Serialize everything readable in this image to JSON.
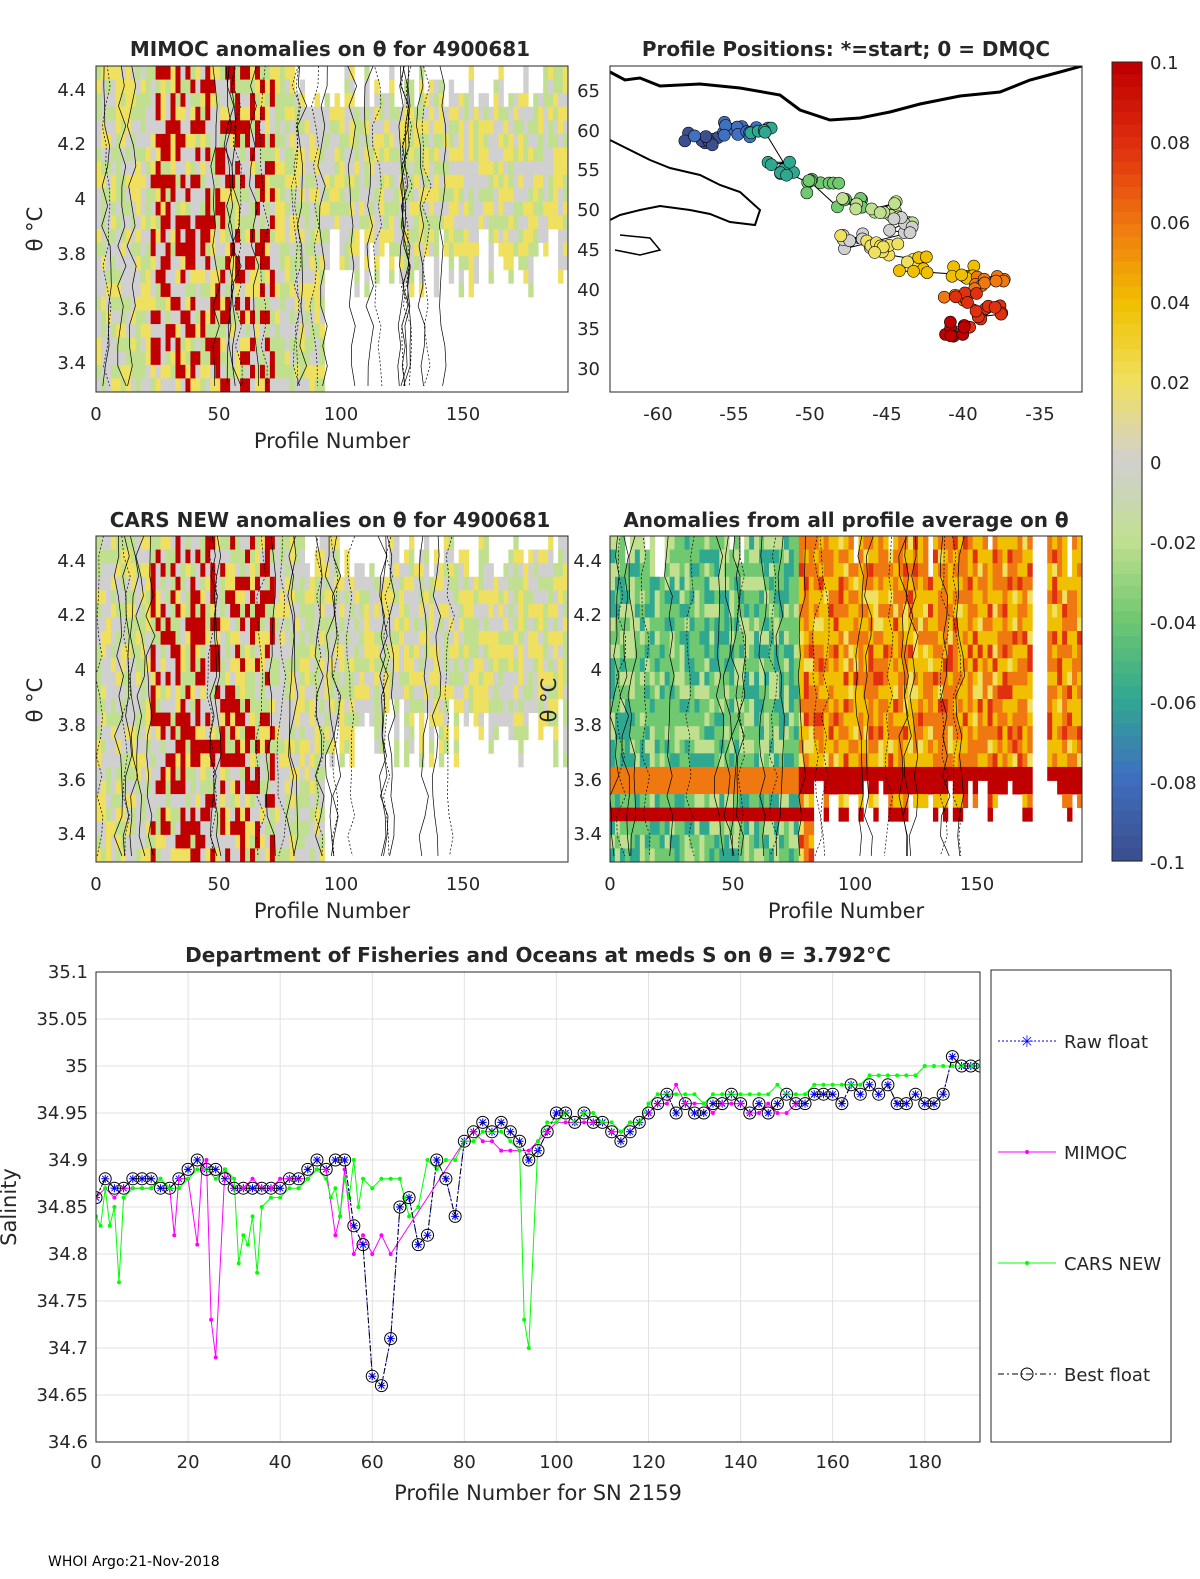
{
  "panels": {
    "mimoc": {
      "title": "MIMOC anomalies on θ  for 4900681",
      "ylabel": "θ °C",
      "xlabel": "Profile Number",
      "xticks": [
        "0",
        "50",
        "100",
        "150"
      ],
      "yticks": [
        "3.4",
        "3.6",
        "3.8",
        "4",
        "4.2",
        "4.4"
      ]
    },
    "positions": {
      "title": "Profile Positions: *=start; 0 = DMQC",
      "xticks": [
        "-60",
        "-55",
        "-50",
        "-45",
        "-40",
        "-35"
      ],
      "yticks": [
        "30",
        "35",
        "40",
        "45",
        "50",
        "55",
        "60",
        "65"
      ]
    },
    "cars": {
      "title": "CARS NEW anomalies on θ for 4900681",
      "ylabel": "θ °C",
      "xlabel": "Profile Number",
      "xticks": [
        "0",
        "50",
        "100",
        "150"
      ],
      "yticks": [
        "3.4",
        "3.6",
        "3.8",
        "4",
        "4.2",
        "4.4"
      ]
    },
    "average": {
      "title": "Anomalies from all profile average on θ",
      "ylabel": "θ °C",
      "xlabel": "Profile Number",
      "xticks": [
        "0",
        "50",
        "100",
        "150"
      ],
      "yticks": [
        "3.4",
        "3.6",
        "3.8",
        "4",
        "4.2",
        "4.4"
      ]
    },
    "colorbar": {
      "ticks": [
        "0.1",
        "0.08",
        "0.06",
        "0.04",
        "0.02",
        "0",
        "-0.02",
        "-0.04",
        "-0.06",
        "-0.08",
        "-0.1"
      ],
      "colors": [
        "#c00000",
        "#e03010",
        "#f07810",
        "#f0c000",
        "#f0e060",
        "#d0d0d0",
        "#c0e090",
        "#70c870",
        "#30a890",
        "#4070c0",
        "#3c4f90"
      ]
    }
  },
  "chart_data": {
    "type": "line",
    "title": "Department of Fisheries and Oceans at meds S on θ = 3.792°C",
    "xlabel": "Profile Number for SN 2159",
    "ylabel": "Salinity",
    "xlim": [
      0,
      192
    ],
    "ylim": [
      34.6,
      35.1
    ],
    "xticks": [
      "0",
      "20",
      "40",
      "60",
      "80",
      "100",
      "120",
      "140",
      "160",
      "180"
    ],
    "yticks": [
      "34.6",
      "34.65",
      "34.7",
      "34.75",
      "34.8",
      "34.85",
      "34.9",
      "34.95",
      "35",
      "35.05",
      "35.1"
    ],
    "series": [
      {
        "name": "Raw float",
        "color": "#0000ff",
        "x": [
          0,
          2,
          4,
          6,
          8,
          10,
          12,
          14,
          16,
          18,
          20,
          22,
          24,
          26,
          28,
          30,
          32,
          34,
          36,
          38,
          40,
          42,
          44,
          46,
          48,
          50,
          52,
          54,
          56,
          58,
          60,
          62,
          64,
          66,
          68,
          70,
          72,
          74,
          76,
          78,
          80,
          82,
          84,
          86,
          88,
          90,
          92,
          94,
          96,
          98,
          100,
          102,
          104,
          106,
          108,
          110,
          112,
          114,
          116,
          118,
          120,
          122,
          124,
          126,
          128,
          130,
          132,
          134,
          136,
          138,
          140,
          142,
          144,
          146,
          148,
          150,
          152,
          154,
          156,
          158,
          160,
          162,
          164,
          166,
          168,
          170,
          172,
          174,
          176,
          178,
          180,
          182,
          184,
          186,
          188,
          190,
          192
        ],
        "y": [
          34.86,
          34.88,
          34.87,
          34.87,
          34.88,
          34.88,
          34.88,
          34.87,
          34.87,
          34.88,
          34.89,
          34.9,
          34.89,
          34.89,
          34.88,
          34.87,
          34.87,
          34.87,
          34.87,
          34.87,
          34.87,
          34.88,
          34.88,
          34.89,
          34.9,
          34.89,
          34.9,
          34.9,
          34.83,
          34.81,
          34.67,
          34.66,
          34.71,
          34.85,
          34.86,
          34.81,
          34.82,
          34.9,
          34.88,
          34.84,
          34.92,
          34.93,
          34.94,
          34.93,
          34.94,
          34.93,
          34.92,
          34.9,
          34.91,
          34.93,
          34.95,
          34.95,
          34.94,
          34.95,
          34.94,
          34.94,
          34.93,
          34.92,
          34.93,
          34.94,
          34.95,
          34.96,
          34.97,
          34.95,
          34.96,
          34.95,
          34.95,
          34.96,
          34.96,
          34.97,
          34.96,
          34.95,
          34.96,
          34.95,
          34.96,
          34.97,
          34.96,
          34.96,
          34.97,
          34.97,
          34.97,
          34.96,
          34.98,
          34.97,
          34.98,
          34.97,
          34.98,
          34.96,
          34.96,
          34.97,
          34.96,
          34.96,
          34.97,
          35.01,
          35,
          35,
          35
        ]
      },
      {
        "name": "MIMOC",
        "color": "#ff00ff",
        "x": [
          0,
          2,
          4,
          6,
          8,
          10,
          12,
          14,
          16,
          17,
          18,
          20,
          22,
          23,
          24,
          25,
          26,
          28,
          30,
          32,
          34,
          36,
          38,
          40,
          42,
          44,
          46,
          48,
          50,
          52,
          53,
          54,
          56,
          58,
          60,
          62,
          64,
          80,
          82,
          84,
          86,
          88,
          90,
          92,
          94,
          96,
          98,
          100,
          102,
          104,
          106,
          108,
          110,
          112,
          114,
          116,
          118,
          120,
          122,
          124,
          126,
          128,
          130,
          132,
          134,
          136,
          138,
          140,
          142,
          144,
          146,
          148,
          150,
          152
        ],
        "y": [
          34.86,
          34.87,
          34.86,
          34.87,
          34.87,
          34.87,
          34.87,
          34.88,
          34.87,
          34.82,
          34.88,
          34.88,
          34.81,
          34.89,
          34.9,
          34.73,
          34.69,
          34.89,
          34.87,
          34.87,
          34.88,
          34.87,
          34.87,
          34.88,
          34.88,
          34.88,
          34.88,
          34.89,
          34.89,
          34.82,
          34.84,
          34.89,
          34.8,
          34.82,
          34.8,
          34.82,
          34.8,
          34.92,
          34.93,
          34.92,
          34.92,
          34.91,
          34.91,
          34.91,
          34.91,
          34.92,
          34.93,
          34.94,
          34.94,
          34.94,
          34.94,
          34.94,
          34.94,
          34.93,
          34.93,
          34.94,
          34.94,
          34.95,
          34.96,
          34.96,
          34.98,
          34.96,
          34.96,
          34.96,
          34.95,
          34.96,
          34.96,
          34.96,
          34.95,
          34.95,
          34.96,
          34.95,
          34.95,
          34.96
        ]
      },
      {
        "name": "CARS NEW",
        "color": "#00ff00",
        "x": [
          0,
          1,
          2,
          3,
          4,
          5,
          6,
          8,
          10,
          12,
          14,
          16,
          18,
          20,
          22,
          24,
          26,
          28,
          30,
          31,
          32,
          33,
          34,
          35,
          36,
          38,
          40,
          42,
          44,
          46,
          48,
          50,
          51,
          52,
          53,
          54,
          55,
          56,
          57,
          58,
          60,
          62,
          64,
          66,
          67,
          68,
          70,
          72,
          74,
          76,
          78,
          80,
          82,
          84,
          86,
          88,
          90,
          92,
          93,
          94,
          96,
          98,
          100,
          102,
          104,
          106,
          108,
          110,
          112,
          114,
          116,
          118,
          120,
          122,
          124,
          126,
          128,
          130,
          132,
          134,
          136,
          138,
          140,
          142,
          144,
          146,
          148,
          150,
          152,
          154,
          156,
          158,
          160,
          162,
          164,
          166,
          168,
          170,
          172,
          174,
          176,
          178,
          180,
          182,
          184,
          186,
          188,
          190,
          192
        ],
        "y": [
          34.84,
          34.83,
          34.87,
          34.83,
          34.85,
          34.77,
          34.86,
          34.87,
          34.87,
          34.87,
          34.88,
          34.87,
          34.87,
          34.88,
          34.89,
          34.89,
          34.88,
          34.89,
          34.88,
          34.79,
          34.82,
          34.81,
          34.84,
          34.78,
          34.85,
          34.86,
          34.86,
          34.87,
          34.87,
          34.88,
          34.89,
          34.88,
          34.86,
          34.87,
          34.84,
          34.88,
          34.86,
          34.9,
          34.85,
          34.88,
          34.87,
          34.88,
          34.88,
          34.88,
          34.86,
          34.84,
          34.85,
          34.9,
          34.89,
          34.9,
          34.9,
          34.92,
          34.92,
          34.93,
          34.93,
          34.93,
          34.92,
          34.91,
          34.73,
          34.7,
          34.92,
          34.94,
          34.94,
          34.95,
          34.94,
          34.95,
          34.95,
          34.94,
          34.94,
          34.93,
          34.94,
          34.94,
          34.96,
          34.97,
          34.97,
          34.97,
          34.97,
          34.97,
          34.96,
          34.97,
          34.97,
          34.97,
          34.97,
          34.97,
          34.97,
          34.97,
          34.98,
          34.97,
          34.97,
          34.97,
          34.98,
          34.98,
          34.98,
          34.98,
          34.98,
          34.98,
          34.99,
          34.99,
          34.99,
          34.99,
          34.99,
          34.99,
          35,
          35,
          35,
          35,
          35,
          35,
          35
        ]
      },
      {
        "name": "Best float",
        "color": "#000000",
        "x": [
          0,
          2,
          4,
          6,
          8,
          10,
          12,
          14,
          16,
          18,
          20,
          22,
          24,
          26,
          28,
          30,
          32,
          34,
          36,
          38,
          40,
          42,
          44,
          46,
          48,
          50,
          52,
          54,
          56,
          58,
          60,
          62,
          64,
          66,
          68,
          70,
          72,
          74,
          76,
          78,
          80,
          82,
          84,
          86,
          88,
          90,
          92,
          94,
          96,
          98,
          100,
          102,
          104,
          106,
          108,
          110,
          112,
          114,
          116,
          118,
          120,
          122,
          124,
          126,
          128,
          130,
          132,
          134,
          136,
          138,
          140,
          142,
          144,
          146,
          148,
          150,
          152,
          154,
          156,
          158,
          160,
          162,
          164,
          166,
          168,
          170,
          172,
          174,
          176,
          178,
          180,
          182,
          184,
          186,
          188,
          190,
          192
        ],
        "y": [
          34.86,
          34.88,
          34.87,
          34.87,
          34.88,
          34.88,
          34.88,
          34.87,
          34.87,
          34.88,
          34.89,
          34.9,
          34.89,
          34.89,
          34.88,
          34.87,
          34.87,
          34.87,
          34.87,
          34.87,
          34.87,
          34.88,
          34.88,
          34.89,
          34.9,
          34.89,
          34.9,
          34.9,
          34.83,
          34.81,
          34.67,
          34.66,
          34.71,
          34.85,
          34.86,
          34.81,
          34.82,
          34.9,
          34.88,
          34.84,
          34.92,
          34.93,
          34.94,
          34.93,
          34.94,
          34.93,
          34.92,
          34.9,
          34.91,
          34.93,
          34.95,
          34.95,
          34.94,
          34.95,
          34.94,
          34.94,
          34.93,
          34.92,
          34.93,
          34.94,
          34.95,
          34.96,
          34.97,
          34.95,
          34.96,
          34.95,
          34.95,
          34.96,
          34.96,
          34.97,
          34.96,
          34.95,
          34.96,
          34.95,
          34.96,
          34.97,
          34.96,
          34.96,
          34.97,
          34.97,
          34.97,
          34.96,
          34.98,
          34.97,
          34.98,
          34.97,
          34.98,
          34.96,
          34.96,
          34.97,
          34.96,
          34.96,
          34.97,
          35.01,
          35,
          35,
          35
        ]
      }
    ],
    "legend": [
      "Raw float",
      "MIMOC",
      "CARS NEW",
      "Best float"
    ]
  },
  "footer": "WHOI Argo:21-Nov-2018"
}
